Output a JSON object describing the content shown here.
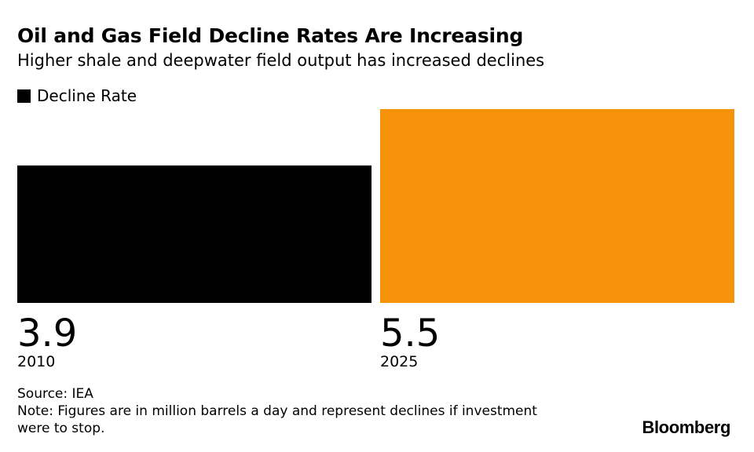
{
  "title": "Oil and Gas Field Decline Rates Are Increasing",
  "subtitle": "Higher shale and deepwater field output has increased declines",
  "legend": {
    "label": "Decline Rate"
  },
  "colors": {
    "legend_swatch": "#000000",
    "bar_2010": "#000000",
    "bar_2025": "#f7930a"
  },
  "chart_data": {
    "type": "bar",
    "categories": [
      "2010",
      "2025"
    ],
    "series": [
      {
        "name": "Decline Rate",
        "values": [
          3.9,
          5.5
        ]
      }
    ],
    "value_labels": [
      "3.9",
      "5.5"
    ],
    "ylim": [
      0,
      5.5
    ],
    "grid": false,
    "legend_position": "top-left"
  },
  "source": "Source: IEA",
  "note": "Note: Figures are in million barrels a day and represent declines if investment were to stop.",
  "brand": "Bloomberg"
}
